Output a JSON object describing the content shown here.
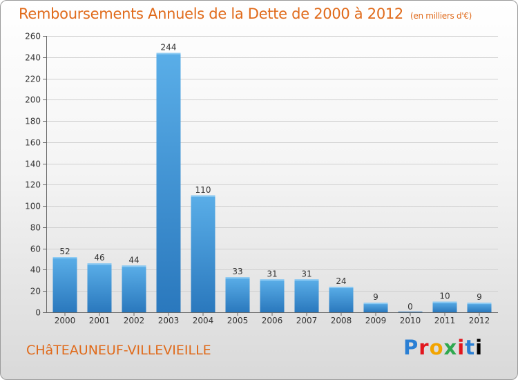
{
  "header": {
    "title": "Remboursements Annuels de la Dette de 2000 à 2012",
    "unit": "(en milliers d'€)"
  },
  "footer": {
    "city": "CHâTEAUNEUF-VILLEVIEILLE",
    "logo_letters": [
      "P",
      "r",
      "o",
      "x",
      "i",
      "t",
      "i"
    ]
  },
  "colors": {
    "bar_top": "#5aaee8",
    "bar_bottom": "#2a78bd",
    "grid": "#cfcfcf",
    "title": "#e06a1a"
  },
  "chart_data": {
    "type": "bar",
    "title": "Remboursements Annuels de la Dette de 2000 à 2012",
    "categories": [
      "2000",
      "2001",
      "2002",
      "2003",
      "2004",
      "2005",
      "2006",
      "2007",
      "2008",
      "2009",
      "2010",
      "2011",
      "2012"
    ],
    "values": [
      52,
      46,
      44,
      244,
      110,
      33,
      31,
      31,
      24,
      9,
      0,
      10,
      9
    ],
    "ylim": [
      0,
      260
    ],
    "yticks": [
      0,
      20,
      40,
      60,
      80,
      100,
      120,
      140,
      160,
      180,
      200,
      220,
      240,
      260
    ],
    "grid": true
  }
}
